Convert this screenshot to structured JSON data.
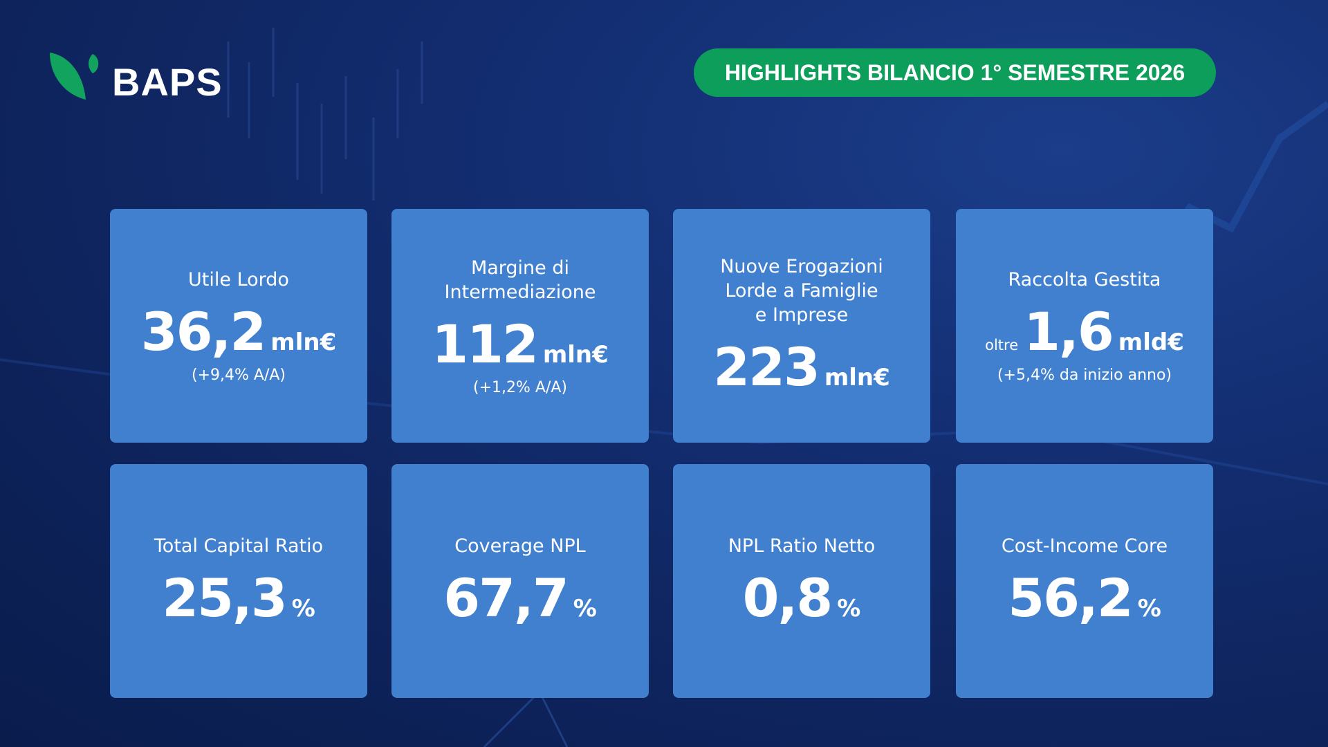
{
  "logo": {
    "text": "BAPS"
  },
  "header": {
    "badge": "HIGHLIGHTS BILANCIO 1° SEMESTRE 2026"
  },
  "cards": [
    {
      "title": [
        "Utile Lordo"
      ],
      "value": "36,2",
      "unit": "mln€",
      "note": "(+9,4% A/A)"
    },
    {
      "title": [
        "Margine di",
        "Intermediazione"
      ],
      "value": "112",
      "unit": "mln€",
      "note": "(+1,2% A/A)"
    },
    {
      "title": [
        "Nuove Erogazioni",
        "Lorde a Famiglie",
        "e Imprese"
      ],
      "value": "223",
      "unit": "mln€"
    },
    {
      "title": [
        "Raccolta Gestita"
      ],
      "prefix": "oltre",
      "value": "1,6",
      "unit": "mld€",
      "note": "(+5,4% da inizio anno)"
    },
    {
      "title": [
        "Total Capital Ratio"
      ],
      "value": "25,3",
      "unit": "%"
    },
    {
      "title": [
        "Coverage NPL"
      ],
      "value": "67,7",
      "unit": "%"
    },
    {
      "title": [
        "NPL Ratio Netto"
      ],
      "value": "0,8",
      "unit": "%"
    },
    {
      "title": [
        "Cost-Income Core"
      ],
      "value": "56,2",
      "unit": "%"
    }
  ]
}
